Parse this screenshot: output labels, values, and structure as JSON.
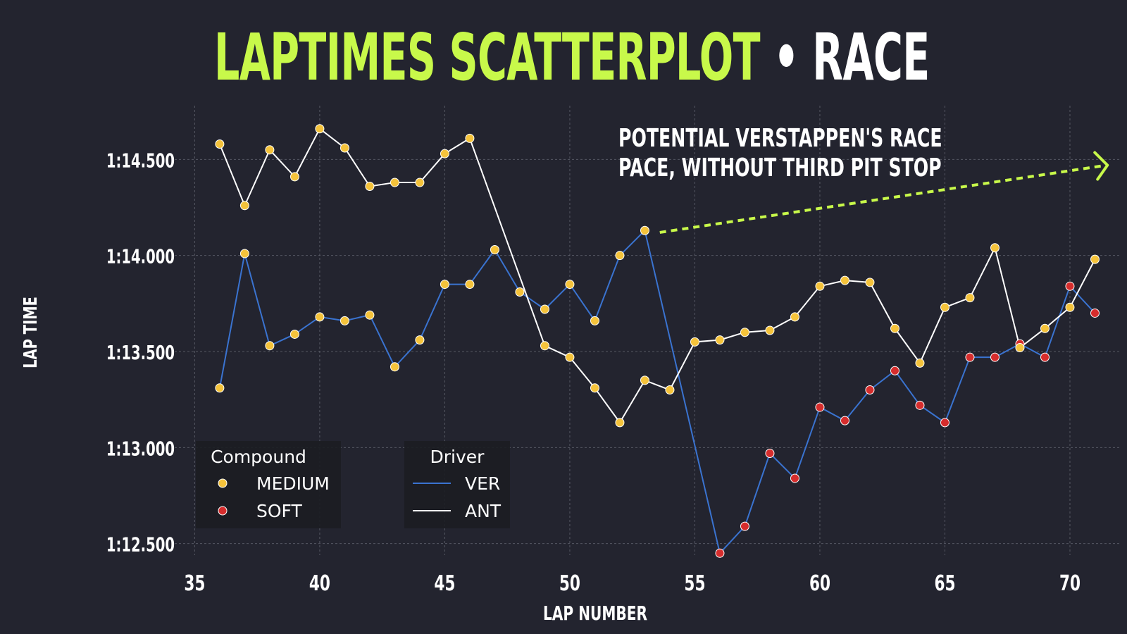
{
  "colors": {
    "background": "#23242f",
    "title_accent": "#c8f94a",
    "title_secondary": "#ffffff",
    "medium": "#f5c33b",
    "soft": "#d62d2d",
    "ver_line": "#3a73d0",
    "ant_line": "#ffffff",
    "grid": "#6b6d78",
    "annotation_arrow": "#c8f94a"
  },
  "title": {
    "main": "LAPTIMES SCATTERPLOT",
    "separator": "•",
    "sub": "RACE"
  },
  "chart_data": {
    "type": "scatter",
    "xlabel": "LAP NUMBER",
    "ylabel": "LAP TIME",
    "xlim": [
      34.2,
      72.0
    ],
    "ylim": [
      72.44,
      74.78
    ],
    "xticks": [
      35,
      40,
      45,
      50,
      55,
      60,
      65,
      70
    ],
    "xtick_labels": [
      "35",
      "40",
      "45",
      "50",
      "55",
      "60",
      "65",
      "70"
    ],
    "yticks": [
      72.5,
      73.0,
      73.5,
      74.0,
      74.5
    ],
    "ytick_labels": [
      "1:12.500",
      "1:13.000",
      "1:13.500",
      "1:14.000",
      "1:14.500"
    ],
    "grid": true,
    "series": [
      {
        "name": "VER",
        "line_color": "#3a73d0",
        "points": [
          {
            "x": 36,
            "y": 73.31,
            "compound": "MEDIUM"
          },
          {
            "x": 37,
            "y": 74.01,
            "compound": "MEDIUM"
          },
          {
            "x": 38,
            "y": 73.53,
            "compound": "MEDIUM"
          },
          {
            "x": 39,
            "y": 73.59,
            "compound": "MEDIUM"
          },
          {
            "x": 40,
            "y": 73.68,
            "compound": "MEDIUM"
          },
          {
            "x": 41,
            "y": 73.66,
            "compound": "MEDIUM"
          },
          {
            "x": 42,
            "y": 73.69,
            "compound": "MEDIUM"
          },
          {
            "x": 43,
            "y": 73.42,
            "compound": "MEDIUM"
          },
          {
            "x": 44,
            "y": 73.56,
            "compound": "MEDIUM"
          },
          {
            "x": 45,
            "y": 73.85,
            "compound": "MEDIUM"
          },
          {
            "x": 46,
            "y": 73.85,
            "compound": "MEDIUM"
          },
          {
            "x": 47,
            "y": 74.03,
            "compound": "MEDIUM"
          },
          {
            "x": 48,
            "y": 73.81,
            "compound": "MEDIUM"
          },
          {
            "x": 49,
            "y": 73.72,
            "compound": "MEDIUM"
          },
          {
            "x": 50,
            "y": 73.85,
            "compound": "MEDIUM"
          },
          {
            "x": 51,
            "y": 73.66,
            "compound": "MEDIUM"
          },
          {
            "x": 52,
            "y": 74.0,
            "compound": "MEDIUM"
          },
          {
            "x": 53,
            "y": 74.13,
            "compound": "MEDIUM"
          },
          {
            "x": 56,
            "y": 72.45,
            "compound": "SOFT"
          },
          {
            "x": 57,
            "y": 72.59,
            "compound": "SOFT"
          },
          {
            "x": 58,
            "y": 72.97,
            "compound": "SOFT"
          },
          {
            "x": 59,
            "y": 72.84,
            "compound": "SOFT"
          },
          {
            "x": 60,
            "y": 73.21,
            "compound": "SOFT"
          },
          {
            "x": 61,
            "y": 73.14,
            "compound": "SOFT"
          },
          {
            "x": 62,
            "y": 73.3,
            "compound": "SOFT"
          },
          {
            "x": 63,
            "y": 73.4,
            "compound": "SOFT"
          },
          {
            "x": 64,
            "y": 73.22,
            "compound": "SOFT"
          },
          {
            "x": 65,
            "y": 73.13,
            "compound": "SOFT"
          },
          {
            "x": 66,
            "y": 73.47,
            "compound": "SOFT"
          },
          {
            "x": 67,
            "y": 73.47,
            "compound": "SOFT"
          },
          {
            "x": 68,
            "y": 73.54,
            "compound": "SOFT"
          },
          {
            "x": 69,
            "y": 73.47,
            "compound": "SOFT"
          },
          {
            "x": 70,
            "y": 73.84,
            "compound": "SOFT"
          },
          {
            "x": 71,
            "y": 73.7,
            "compound": "SOFT"
          }
        ]
      },
      {
        "name": "ANT",
        "line_color": "#ffffff",
        "points": [
          {
            "x": 36,
            "y": 74.58,
            "compound": "MEDIUM"
          },
          {
            "x": 37,
            "y": 74.26,
            "compound": "MEDIUM"
          },
          {
            "x": 38,
            "y": 74.55,
            "compound": "MEDIUM"
          },
          {
            "x": 39,
            "y": 74.41,
            "compound": "MEDIUM"
          },
          {
            "x": 40,
            "y": 74.66,
            "compound": "MEDIUM"
          },
          {
            "x": 41,
            "y": 74.56,
            "compound": "MEDIUM"
          },
          {
            "x": 42,
            "y": 74.36,
            "compound": "MEDIUM"
          },
          {
            "x": 43,
            "y": 74.38,
            "compound": "MEDIUM"
          },
          {
            "x": 44,
            "y": 74.38,
            "compound": "MEDIUM"
          },
          {
            "x": 45,
            "y": 74.53,
            "compound": "MEDIUM"
          },
          {
            "x": 46,
            "y": 74.61,
            "compound": "MEDIUM"
          },
          {
            "x": 49,
            "y": 73.53,
            "compound": "MEDIUM"
          },
          {
            "x": 50,
            "y": 73.47,
            "compound": "MEDIUM"
          },
          {
            "x": 51,
            "y": 73.31,
            "compound": "MEDIUM"
          },
          {
            "x": 52,
            "y": 73.13,
            "compound": "MEDIUM"
          },
          {
            "x": 53,
            "y": 73.35,
            "compound": "MEDIUM"
          },
          {
            "x": 54,
            "y": 73.3,
            "compound": "MEDIUM"
          },
          {
            "x": 55,
            "y": 73.55,
            "compound": "MEDIUM"
          },
          {
            "x": 56,
            "y": 73.56,
            "compound": "MEDIUM"
          },
          {
            "x": 57,
            "y": 73.6,
            "compound": "MEDIUM"
          },
          {
            "x": 58,
            "y": 73.61,
            "compound": "MEDIUM"
          },
          {
            "x": 59,
            "y": 73.68,
            "compound": "MEDIUM"
          },
          {
            "x": 60,
            "y": 73.84,
            "compound": "MEDIUM"
          },
          {
            "x": 61,
            "y": 73.87,
            "compound": "MEDIUM"
          },
          {
            "x": 62,
            "y": 73.86,
            "compound": "MEDIUM"
          },
          {
            "x": 63,
            "y": 73.62,
            "compound": "MEDIUM"
          },
          {
            "x": 64,
            "y": 73.44,
            "compound": "MEDIUM"
          },
          {
            "x": 65,
            "y": 73.73,
            "compound": "MEDIUM"
          },
          {
            "x": 66,
            "y": 73.78,
            "compound": "MEDIUM"
          },
          {
            "x": 67,
            "y": 74.04,
            "compound": "MEDIUM"
          },
          {
            "x": 68,
            "y": 73.52,
            "compound": "MEDIUM"
          },
          {
            "x": 69,
            "y": 73.62,
            "compound": "MEDIUM"
          },
          {
            "x": 70,
            "y": 73.73,
            "compound": "MEDIUM"
          },
          {
            "x": 71,
            "y": 73.98,
            "compound": "MEDIUM"
          }
        ]
      }
    ],
    "compound_colors": {
      "MEDIUM": "#f5c33b",
      "SOFT": "#d62d2d"
    },
    "legends": [
      {
        "title": "Compound",
        "entries": [
          {
            "label": "MEDIUM",
            "kind": "marker",
            "color": "#f5c33b"
          },
          {
            "label": "SOFT",
            "kind": "marker",
            "color": "#d62d2d"
          }
        ]
      },
      {
        "title": "Driver",
        "entries": [
          {
            "label": "VER",
            "kind": "line",
            "color": "#3a73d0"
          },
          {
            "label": "ANT",
            "kind": "line",
            "color": "#ffffff"
          }
        ]
      }
    ],
    "legend_placement": "lower-left",
    "annotation": {
      "lines": [
        "POTENTIAL VERSTAPPEN'S RACE",
        "PACE, WITHOUT THIRD PIT STOP"
      ],
      "arrow_from": {
        "x": 53.6,
        "y": 74.12
      },
      "arrow_to": {
        "x": 71.5,
        "y": 74.47
      },
      "arrow_style": "dotted"
    }
  }
}
